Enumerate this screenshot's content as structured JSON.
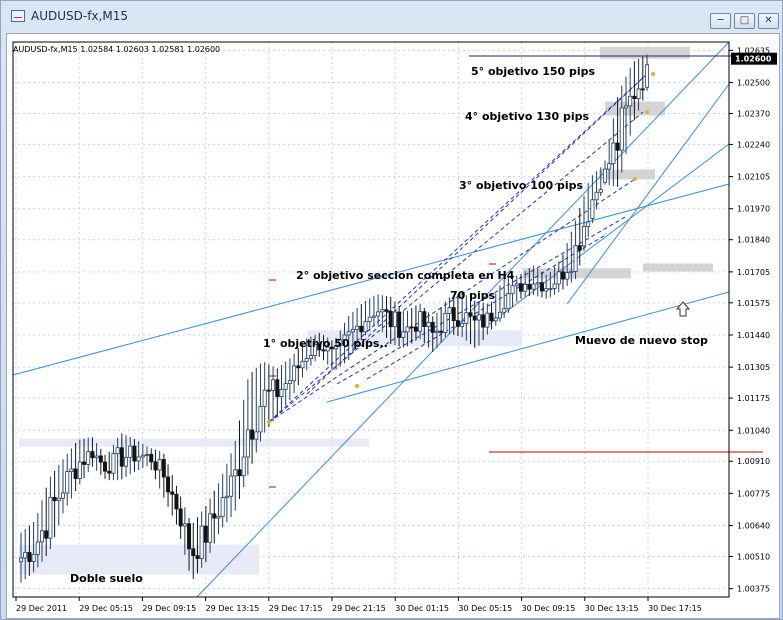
{
  "window": {
    "title": "AUDUSD-fx,M15",
    "buttons": [
      "minimize",
      "restore",
      "close"
    ]
  },
  "colors": {
    "bull_candle": "#1f3f6e",
    "bear_candle": "#141414",
    "trend_line": "#3a8fe0",
    "dash_line": "#2233bb",
    "stop_line": "#cc0000",
    "zone_gray": "#cccccc",
    "zone_blue": "#e4e8f6"
  },
  "chart_data": {
    "type": "candlestick",
    "header": "AUDUSD-fx,M15  1.02584 1.02603 1.02581 1.02600",
    "current_price_label": "1.02600",
    "x_tick_labels": [
      "29 Dec 2011",
      "29 Dec 05:15",
      "29 Dec 09:15",
      "29 Dec 13:15",
      "29 Dec 17:15",
      "29 Dec 21:15",
      "30 Dec 01:15",
      "30 Dec 05:15",
      "30 Dec 09:15",
      "30 Dec 13:15",
      "30 Dec 17:15"
    ],
    "y_tick_labels": [
      "1.02635",
      "1.02500",
      "1.02370",
      "1.02240",
      "1.02105",
      "1.01970",
      "1.01840",
      "1.01705",
      "1.01575",
      "1.01440",
      "1.01305",
      "1.01175",
      "1.01040",
      "1.00910",
      "1.00775",
      "1.00640",
      "1.00510",
      "1.00375"
    ],
    "ylim": [
      1.0034,
      1.0267
    ],
    "grid": true,
    "price_path": [
      [
        1.0059,
        1.0042
      ],
      [
        1.0064,
        1.0047
      ],
      [
        1.0081,
        1.0056
      ],
      [
        1.009,
        1.0072
      ],
      [
        1.0098,
        1.0082
      ],
      [
        1.01,
        1.009
      ],
      [
        1.0092,
        1.0084
      ],
      [
        1.0101,
        1.0085
      ],
      [
        1.0099,
        1.0088
      ],
      [
        1.0096,
        1.009
      ],
      [
        1.0093,
        1.0078
      ],
      [
        1.0078,
        1.0065
      ],
      [
        1.0062,
        1.0043
      ],
      [
        1.007,
        1.0051
      ],
      [
        1.0081,
        1.0064
      ],
      [
        1.0095,
        1.0072
      ],
      [
        1.0123,
        1.009
      ],
      [
        1.013,
        1.0105
      ],
      [
        1.0128,
        1.0112
      ],
      [
        1.0133,
        1.0119
      ],
      [
        1.0141,
        1.013
      ],
      [
        1.0144,
        1.0136
      ],
      [
        1.014,
        1.013
      ],
      [
        1.015,
        1.0135
      ],
      [
        1.0156,
        1.0144
      ],
      [
        1.016,
        1.015
      ],
      [
        1.0158,
        1.0142
      ],
      [
        1.0152,
        1.014
      ],
      [
        1.0156,
        1.0144
      ],
      [
        1.015,
        1.0138
      ],
      [
        1.0158,
        1.0146
      ],
      [
        1.016,
        1.0145
      ],
      [
        1.0156,
        1.014
      ],
      [
        1.0156,
        1.0147
      ],
      [
        1.0167,
        1.0153
      ],
      [
        1.0168,
        1.016
      ],
      [
        1.0172,
        1.0162
      ],
      [
        1.0168,
        1.016
      ],
      [
        1.0175,
        1.0164
      ],
      [
        1.019,
        1.017
      ],
      [
        1.0208,
        1.019
      ],
      [
        1.0215,
        1.0208
      ],
      [
        1.0242,
        1.021
      ],
      [
        1.0256,
        1.0235
      ],
      [
        1.02603,
        1.0248
      ]
    ],
    "annotations": [
      "5° objetivo 150 pips",
      "4° objetivo 130 pips",
      "3° objetivo 100 pips",
      "2° objetivo seccion completa en H4",
      "70 pips",
      "1° objetivo 50 pips..",
      "Muevo de nuevo stop",
      "Doble suelo"
    ]
  }
}
